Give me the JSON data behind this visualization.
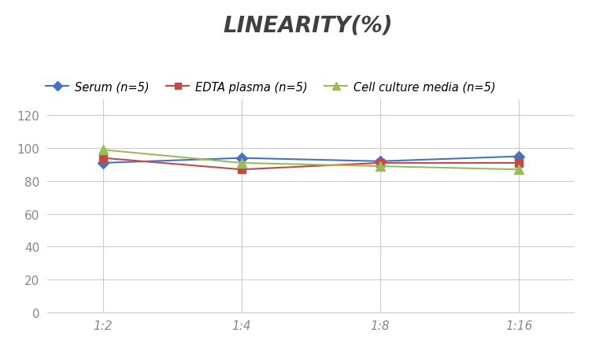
{
  "title": "LINEARITY(%)",
  "title_fontsize": 20,
  "title_style": "italic",
  "title_weight": "bold",
  "title_color": "#404040",
  "x_labels": [
    "1:2",
    "1:4",
    "1:8",
    "1:16"
  ],
  "x_positions": [
    0,
    1,
    2,
    3
  ],
  "series": [
    {
      "label": "Serum (n=5)",
      "values": [
        91,
        94,
        92,
        95
      ],
      "color": "#4472C4",
      "marker": "D",
      "linewidth": 1.5,
      "markersize": 7
    },
    {
      "label": "EDTA plasma (n=5)",
      "values": [
        94,
        87,
        91,
        91
      ],
      "color": "#BE4B48",
      "marker": "s",
      "linewidth": 1.5,
      "markersize": 7
    },
    {
      "label": "Cell culture media (n=5)",
      "values": [
        99,
        91,
        89,
        87
      ],
      "color": "#9BBB59",
      "marker": "^",
      "linewidth": 1.5,
      "markersize": 8
    }
  ],
  "ylim": [
    0,
    130
  ],
  "yticks": [
    0,
    20,
    40,
    60,
    80,
    100,
    120
  ],
  "xlim": [
    -0.4,
    3.4
  ],
  "background_color": "#ffffff",
  "grid_color": "#cccccc",
  "tick_color": "#888888",
  "legend_fontsize": 10.5,
  "tick_fontsize": 11
}
